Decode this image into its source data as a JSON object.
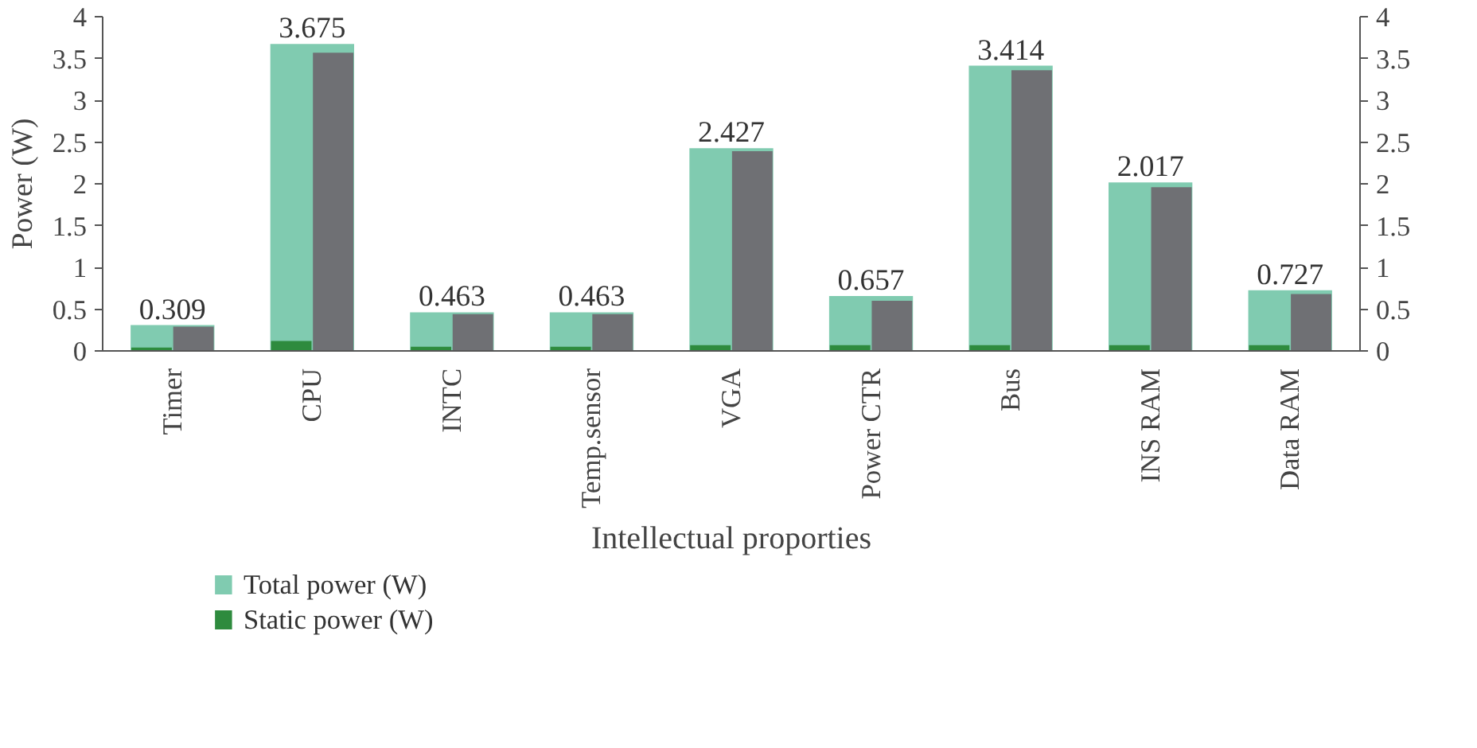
{
  "chart_data": {
    "type": "bar",
    "categories": [
      "Timer",
      "CPU",
      "INTC",
      "Temp.sensor",
      "VGA",
      "Power CTR",
      "Bus",
      "INS RAM",
      "Data RAM"
    ],
    "series": [
      {
        "name": "Total power (W)",
        "color": "#80cbb0",
        "values": [
          0.309,
          3.675,
          0.463,
          0.463,
          2.427,
          0.657,
          3.414,
          2.017,
          0.727
        ],
        "value_labels": [
          "0.309",
          "3.675",
          "0.463",
          "0.463",
          "2.427",
          "0.657",
          "3.414",
          "2.017",
          "0.727"
        ]
      },
      {
        "name": "Static power (W)",
        "color": "#2e8b3e",
        "values": [
          0.04,
          0.12,
          0.05,
          0.05,
          0.07,
          0.07,
          0.07,
          0.07,
          0.07
        ]
      },
      {
        "color": "#6f7074",
        "values": [
          0.29,
          3.57,
          0.44,
          0.44,
          2.39,
          0.6,
          3.36,
          1.96,
          0.68
        ]
      }
    ],
    "xlabel": "Intellectual proporties",
    "ylabel": "Power (W)",
    "ylim": [
      0,
      4
    ],
    "yticks": [
      0,
      0.5,
      1,
      1.5,
      2,
      2.5,
      3,
      3.5,
      4
    ],
    "y2lim": [
      0,
      4
    ],
    "y2ticks": [
      0,
      0.5,
      1,
      1.5,
      2,
      2.5,
      3,
      3.5,
      4
    ],
    "legend": "bottom left",
    "grid": false
  }
}
